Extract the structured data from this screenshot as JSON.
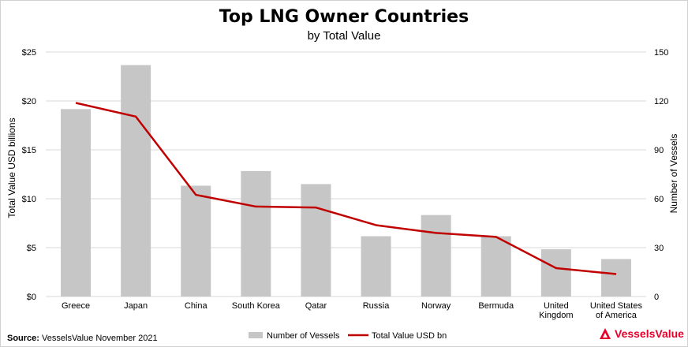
{
  "chart_data": {
    "type": "bar",
    "title": "Top LNG Owner Countries",
    "subtitle": "by Total Value",
    "categories": [
      "Greece",
      "Japan",
      "China",
      "South Korea",
      "Qatar",
      "Russia",
      "Norway",
      "Bermuda",
      "United Kingdom",
      "United States of America"
    ],
    "category_lines": [
      [
        "Greece"
      ],
      [
        "Japan"
      ],
      [
        "China"
      ],
      [
        "South Korea"
      ],
      [
        "Qatar"
      ],
      [
        "Russia"
      ],
      [
        "Norway"
      ],
      [
        "Bermuda"
      ],
      [
        "United",
        "Kingdom"
      ],
      [
        "United States",
        "of America"
      ]
    ],
    "series": [
      {
        "name": "Number of Vessels",
        "type": "bar",
        "axis": "right",
        "color": "#c6c6c6",
        "values": [
          115,
          142,
          68,
          77,
          69,
          37,
          50,
          37,
          29,
          23
        ]
      },
      {
        "name": "Total Value USD bn",
        "type": "line",
        "axis": "left",
        "color": "#c00000",
        "values": [
          19.8,
          18.4,
          10.4,
          9.2,
          9.1,
          7.3,
          6.5,
          6.1,
          2.9,
          2.3
        ]
      }
    ],
    "y_left": {
      "label": "Total Value USD billions",
      "ylim": [
        0,
        25
      ],
      "ticks": [
        0,
        5,
        10,
        15,
        20,
        25
      ],
      "tick_labels": [
        "$0",
        "$5",
        "$10",
        "$15",
        "$20",
        "$25"
      ]
    },
    "y_right": {
      "label": "Number of Vessels",
      "ylim": [
        0,
        150
      ],
      "ticks": [
        0,
        30,
        60,
        90,
        120,
        150
      ],
      "tick_labels": [
        "0",
        "30",
        "60",
        "90",
        "120",
        "150"
      ]
    },
    "grid": true,
    "legend": "bottom"
  },
  "source": {
    "label": "Source:",
    "text": "VesselsValue November 2021"
  },
  "brand": {
    "name": "VesselsValue",
    "color": "#e4002b"
  }
}
